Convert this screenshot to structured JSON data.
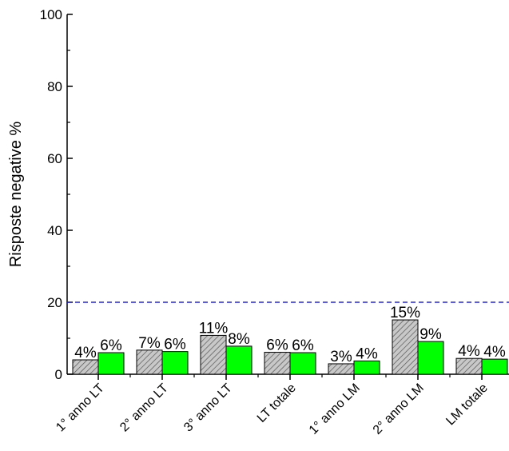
{
  "chart_data": {
    "type": "bar",
    "title": "",
    "xlabel": "",
    "ylabel": "Risposte negative %",
    "ylim": [
      0,
      100
    ],
    "yticks": [
      0,
      20,
      40,
      60,
      80,
      100
    ],
    "grid": false,
    "categories": [
      "1° anno LT",
      "2° anno LT",
      "3° anno LT",
      "LT totale",
      "1° anno LM",
      "2° anno LM",
      "LM totale"
    ],
    "series": [
      {
        "values": [
          4,
          6.7,
          10.8,
          6.1,
          2.9,
          15.1,
          4.4
        ],
        "labels": [
          "4%",
          "7%",
          "11%",
          "6%",
          "3%",
          "15%",
          "4%"
        ],
        "color": "#c0c0c0",
        "pattern": "diagonal-hatch"
      },
      {
        "values": [
          6,
          6.3,
          7.8,
          6.0,
          3.7,
          9.1,
          4.2
        ],
        "labels": [
          "6%",
          "6%",
          "8%",
          "6%",
          "4%",
          "9%",
          "4%"
        ],
        "color": "#00ff00",
        "pattern": "solid"
      }
    ],
    "reference_line": {
      "value": 20,
      "color": "#2222ee",
      "style": "dashed"
    }
  }
}
